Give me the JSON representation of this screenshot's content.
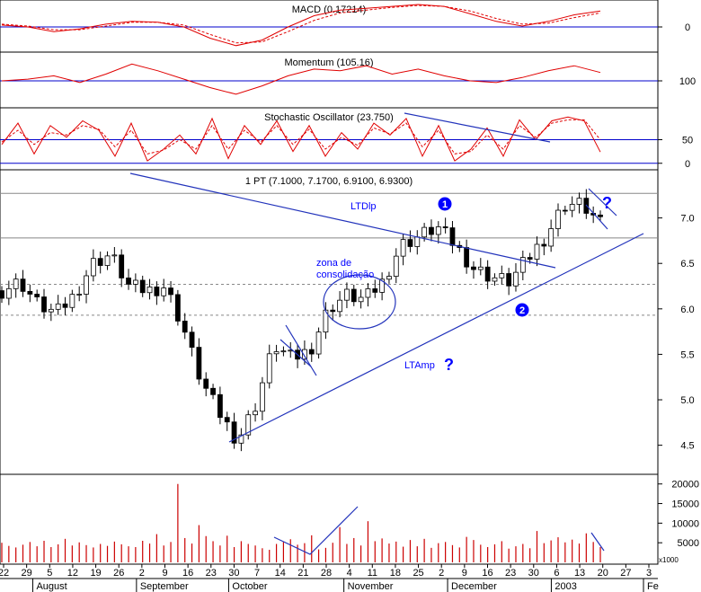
{
  "colors": {
    "panel_border": "#000000",
    "reference_line": "#0000cc",
    "indicator": "#e00000",
    "candle_up": "#ffffff",
    "candle_down": "#000000",
    "volume": "#cc0000",
    "annotation": "#0000ff",
    "trendline": "#2233bb"
  },
  "panels": {
    "macd": {
      "label": "MACD (0.17214)",
      "ticks": [
        "0"
      ]
    },
    "momentum": {
      "label": "Momentum (105.16)",
      "ticks": [
        "100"
      ]
    },
    "stochastic": {
      "label": "Stochastic Oscillator (23.750)",
      "ticks": [
        "50",
        "0"
      ]
    },
    "price": {
      "label": "1 PT (7.1000, 7.1700, 6.9100, 6.9300)"
    },
    "volume": {
      "unit_label": "x1000"
    }
  },
  "annotations": {
    "ltdlp": "LTDlp",
    "zona_line1": "zona de",
    "zona_line2": "consolidação",
    "ltamp": "LTAmp",
    "question": "?",
    "marker1": "1",
    "marker2": "2"
  },
  "chart_data": [
    {
      "type": "line",
      "title": "MACD (0.17214)",
      "ylim": [
        -0.25,
        0.25
      ],
      "y_ticks": [
        0
      ],
      "series": [
        {
          "values": [
            0.02,
            0.0,
            -0.05,
            -0.02,
            0.03,
            0.06,
            0.05,
            0.0,
            -0.12,
            -0.2,
            -0.14,
            0.0,
            0.12,
            0.18,
            0.2,
            0.22,
            0.24,
            0.22,
            0.14,
            0.06,
            0.01,
            0.06,
            0.13,
            0.17
          ]
        },
        {
          "values": [
            0.03,
            0.01,
            -0.03,
            -0.03,
            0.01,
            0.05,
            0.05,
            0.02,
            -0.08,
            -0.17,
            -0.16,
            -0.05,
            0.07,
            0.15,
            0.18,
            0.21,
            0.23,
            0.22,
            0.17,
            0.09,
            0.03,
            0.04,
            0.1,
            0.15
          ]
        }
      ]
    },
    {
      "type": "line",
      "title": "Momentum (105.16)",
      "ylim": [
        85,
        115
      ],
      "y_ticks": [
        100
      ],
      "series": [
        {
          "values": [
            100,
            101,
            103,
            99,
            104,
            110,
            106,
            101,
            96,
            92,
            97,
            103,
            107,
            106,
            109,
            104,
            107,
            103,
            100,
            99,
            102,
            106,
            109,
            105
          ]
        }
      ]
    },
    {
      "type": "line",
      "title": "Stochastic Oscillator (23.750)",
      "ylim": [
        -10,
        110
      ],
      "y_ticks": [
        50,
        0
      ],
      "series": [
        {
          "values": [
            40,
            85,
            20,
            80,
            55,
            90,
            70,
            15,
            85,
            5,
            30,
            60,
            20,
            95,
            10,
            80,
            40,
            90,
            25,
            80,
            15,
            65,
            30,
            85,
            60,
            95,
            15,
            80,
            5,
            30,
            75,
            15,
            92,
            50,
            90,
            98,
            90,
            24
          ]
        },
        {
          "values": [
            45,
            70,
            40,
            65,
            60,
            80,
            72,
            35,
            70,
            20,
            28,
            50,
            30,
            80,
            30,
            70,
            45,
            80,
            40,
            72,
            30,
            55,
            38,
            75,
            62,
            85,
            35,
            70,
            20,
            25,
            60,
            30,
            80,
            55,
            85,
            92,
            92,
            50
          ]
        }
      ]
    },
    {
      "type": "line",
      "title": "1 PT (7.1000, 7.1700, 6.9100, 6.9300)",
      "ylim": [
        4.2,
        7.5
      ],
      "y_ticks": [
        7.0,
        6.5,
        6.0,
        5.5,
        5.0,
        4.5
      ],
      "x_ticks": [
        "22",
        "29",
        "5",
        "12",
        "19",
        "26",
        "2",
        "9",
        "16",
        "23",
        "30",
        "7",
        "14",
        "21",
        "28",
        "4",
        "11",
        "18",
        "25",
        "2",
        "9",
        "16",
        "23",
        "30",
        "6",
        "13",
        "20",
        "27",
        "3"
      ],
      "months": [
        "August",
        "September",
        "October",
        "November",
        "December",
        "2003",
        "Fe"
      ],
      "series": [
        {
          "values": [
            6.2,
            6.3,
            6.05,
            5.95,
            6.15,
            6.5,
            6.6,
            6.25,
            6.2,
            6.25,
            5.8,
            5.2,
            4.85,
            4.55,
            4.95,
            5.6,
            5.45,
            5.55,
            6.0,
            6.15,
            6.1,
            6.3,
            6.7,
            6.8,
            6.9,
            6.7,
            6.45,
            6.35,
            6.3,
            6.55,
            6.8,
            7.15,
            7.15,
            6.93
          ]
        }
      ],
      "reference_lines": [
        6.27,
        5.93,
        6.78,
        7.27
      ]
    },
    {
      "type": "bar",
      "title": "",
      "ylabel": "x1000",
      "ylim": [
        0,
        22000
      ],
      "y_ticks": [
        20000,
        15000,
        10000,
        5000
      ],
      "values": [
        5000,
        4200,
        3800,
        4500,
        5200,
        4100,
        5500,
        3900,
        4600,
        6000,
        4300,
        5100,
        4400,
        3800,
        4700,
        4200,
        5300,
        4600,
        4100,
        3900,
        5500,
        4800,
        7200,
        4300,
        5200,
        20000,
        6200,
        4800,
        9500,
        6700,
        5400,
        4300,
        6800,
        3900,
        5400,
        4700,
        4300,
        3600,
        3200,
        4700,
        5200,
        5900,
        4500,
        4900,
        6900,
        3300,
        3700,
        5000,
        9000,
        4700,
        6200,
        4300,
        10500,
        5400,
        6100,
        4800,
        5300,
        4000,
        5700,
        4100,
        6000,
        3700,
        4900,
        5200,
        4400,
        3800,
        6500,
        5700,
        4500,
        3900,
        4600,
        5400,
        3500,
        4100,
        4700,
        3600,
        8000,
        4900,
        5600,
        6400,
        5100,
        5800,
        4800,
        7400,
        5200,
        3900
      ]
    }
  ]
}
